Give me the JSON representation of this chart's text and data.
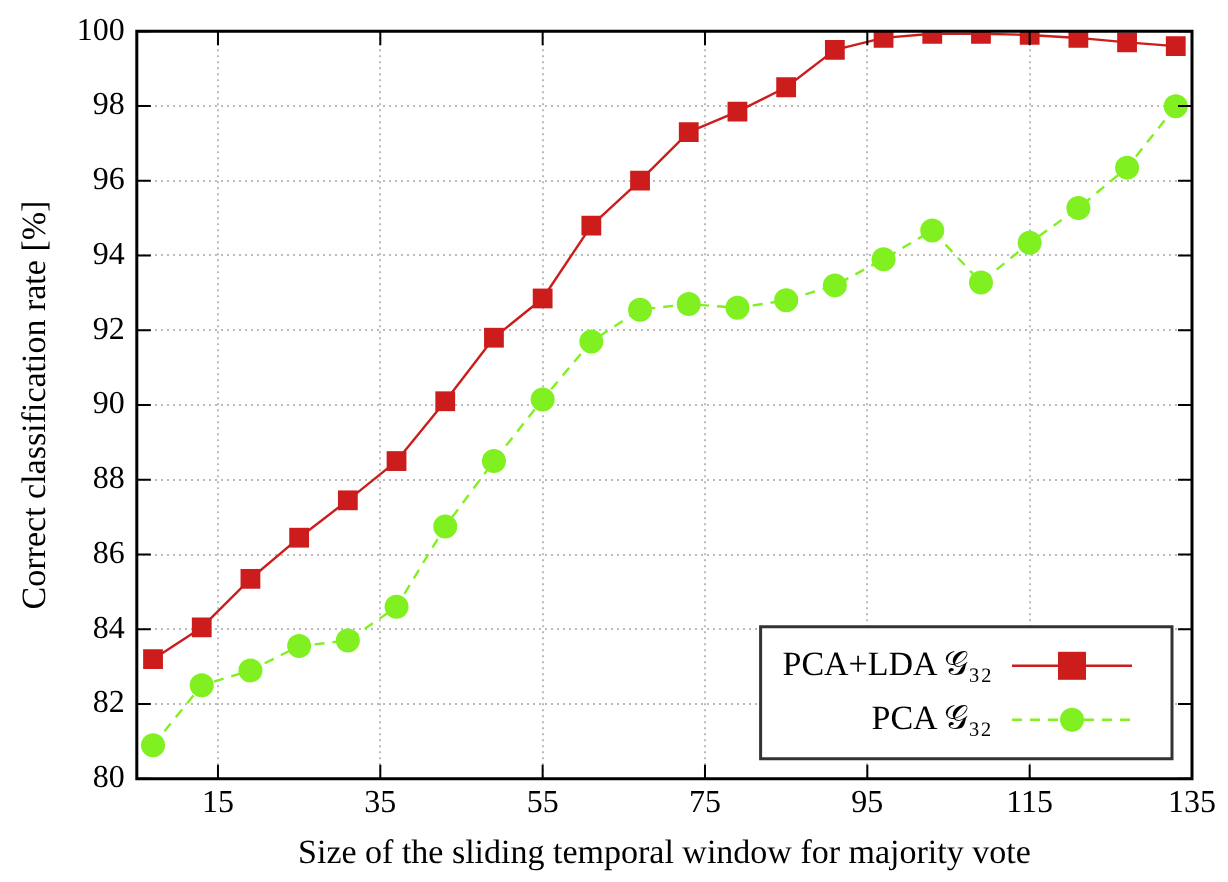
{
  "chart_data": {
    "type": "line",
    "xlabel": "Size of the sliding temporal window for majority vote",
    "ylabel": "Correct classification rate [%]",
    "x": [
      7,
      13,
      19,
      25,
      31,
      37,
      43,
      49,
      55,
      61,
      67,
      73,
      79,
      85,
      91,
      97,
      103,
      109,
      115,
      121,
      127,
      133
    ],
    "series": [
      {
        "name": "PCA+LDA 𝒢₃₂",
        "color": "#cc1c1c",
        "marker": "square",
        "line_style": "solid",
        "values": [
          83.2,
          84.05,
          85.35,
          86.45,
          87.45,
          88.5,
          90.1,
          91.8,
          92.85,
          94.8,
          96.0,
          97.3,
          97.85,
          98.5,
          99.5,
          99.82,
          99.93,
          99.93,
          99.9,
          99.82,
          99.7,
          99.6
        ]
      },
      {
        "name": "PCA 𝒢₃₂",
        "color": "#80f020",
        "marker": "circle",
        "line_style": "dashed",
        "values": [
          80.9,
          82.5,
          82.9,
          83.55,
          83.7,
          84.6,
          86.75,
          88.5,
          90.15,
          91.7,
          92.55,
          92.7,
          92.6,
          92.8,
          93.2,
          93.9,
          94.67,
          93.28,
          94.34,
          95.27,
          96.35,
          97.99
        ]
      }
    ],
    "xlim": [
      5,
      135
    ],
    "xticks": [
      15,
      35,
      55,
      75,
      95,
      115,
      135
    ],
    "ylim": [
      80,
      100
    ],
    "yticks": [
      80,
      82,
      84,
      86,
      88,
      90,
      92,
      94,
      96,
      98,
      100
    ],
    "grid": true,
    "legend": "bottom right"
  }
}
